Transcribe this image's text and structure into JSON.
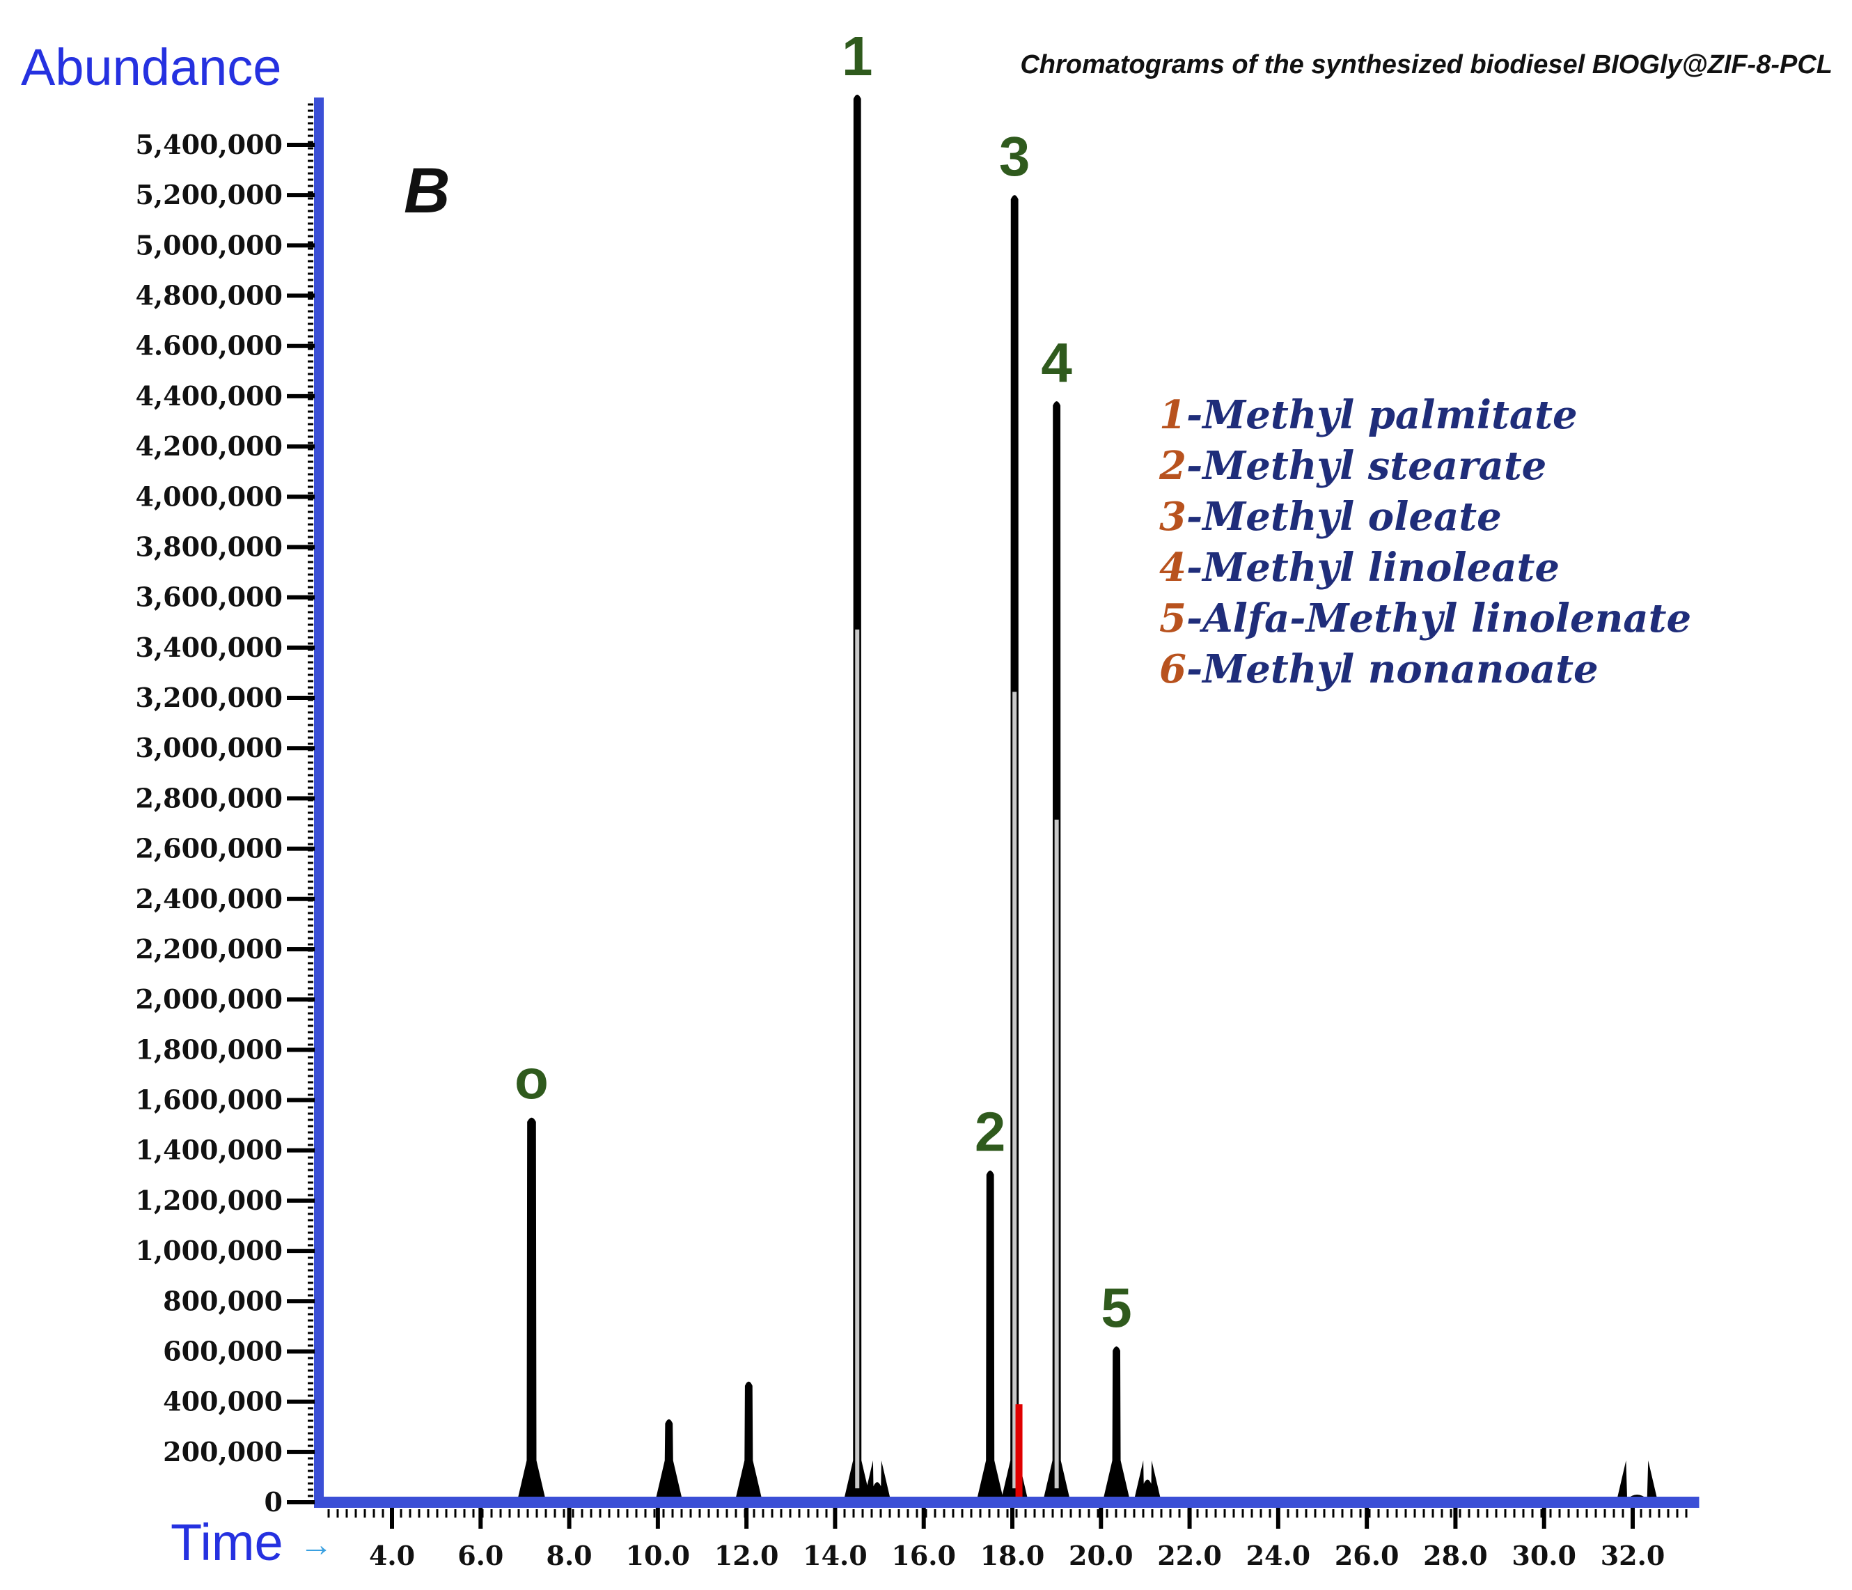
{
  "chart_data": {
    "type": "line",
    "panel_label": "B",
    "title": "Chromatograms of the synthesized biodiesel BIOGly@ZIF-8-PCL",
    "ylabel": "Abundance",
    "xlabel": "Time",
    "xlabel_arrow": "→",
    "xlim": [
      2.0,
      33.5
    ],
    "ylim": [
      0,
      5600000
    ],
    "y_ticks": [
      {
        "value": 0,
        "label": "0"
      },
      {
        "value": 200000,
        "label": "200,000"
      },
      {
        "value": 400000,
        "label": "400,000"
      },
      {
        "value": 600000,
        "label": "600,000"
      },
      {
        "value": 800000,
        "label": "800,000"
      },
      {
        "value": 1000000,
        "label": "1,000,000"
      },
      {
        "value": 1200000,
        "label": "1,200,000"
      },
      {
        "value": 1400000,
        "label": "1,400,000"
      },
      {
        "value": 1600000,
        "label": "1,600,000"
      },
      {
        "value": 1800000,
        "label": "1,800,000"
      },
      {
        "value": 2000000,
        "label": "2,000,000"
      },
      {
        "value": 2200000,
        "label": "2,200,000"
      },
      {
        "value": 2400000,
        "label": "2,400,000"
      },
      {
        "value": 2600000,
        "label": "2,600,000"
      },
      {
        "value": 2800000,
        "label": "2,800,000"
      },
      {
        "value": 3000000,
        "label": "3,000,000"
      },
      {
        "value": 3200000,
        "label": "3,200,000"
      },
      {
        "value": 3400000,
        "label": "3,400,000"
      },
      {
        "value": 3600000,
        "label": "3,600,000"
      },
      {
        "value": 3800000,
        "label": "3,800,000"
      },
      {
        "value": 4000000,
        "label": "4,000,000"
      },
      {
        "value": 4200000,
        "label": "4,200,000"
      },
      {
        "value": 4400000,
        "label": "4,400,000"
      },
      {
        "value": 4600000,
        "label": "4.600,000"
      },
      {
        "value": 4800000,
        "label": "4,800,000"
      },
      {
        "value": 5000000,
        "label": "5,000,000"
      },
      {
        "value": 5200000,
        "label": "5,200,000"
      },
      {
        "value": 5400000,
        "label": "5,400,000"
      }
    ],
    "x_ticks": [
      {
        "value": 4.0,
        "label": "4.0"
      },
      {
        "value": 6.0,
        "label": "6.0"
      },
      {
        "value": 8.0,
        "label": "8.0"
      },
      {
        "value": 10.0,
        "label": "10.0"
      },
      {
        "value": 12.0,
        "label": "12.0"
      },
      {
        "value": 14.0,
        "label": "14.0"
      },
      {
        "value": 16.0,
        "label": "16.0"
      },
      {
        "value": 18.0,
        "label": "18.0"
      },
      {
        "value": 20.0,
        "label": "20.0"
      },
      {
        "value": 22.0,
        "label": "22.0"
      },
      {
        "value": 24.0,
        "label": "24.0"
      },
      {
        "value": 26.0,
        "label": "26.0"
      },
      {
        "value": 28.0,
        "label": "28.0"
      },
      {
        "value": 30.0,
        "label": "30.0"
      },
      {
        "value": 32.0,
        "label": "32.0"
      }
    ],
    "peaks": [
      {
        "label": "o",
        "time": 7.15,
        "abundance": 1530000,
        "width": 0.22
      },
      {
        "label": "",
        "time": 10.25,
        "abundance": 330000,
        "width": 0.12
      },
      {
        "label": "",
        "time": 12.05,
        "abundance": 480000,
        "width": 0.1
      },
      {
        "label": "1",
        "time": 14.5,
        "abundance": 5600000,
        "width": 0.18
      },
      {
        "label": "",
        "time": 14.95,
        "abundance": 80000,
        "width": 0.08
      },
      {
        "label": "2",
        "time": 17.5,
        "abundance": 1320000,
        "width": 0.12
      },
      {
        "label": "3",
        "time": 18.05,
        "abundance": 5200000,
        "width": 0.12
      },
      {
        "label": "4",
        "time": 19.0,
        "abundance": 4380000,
        "width": 0.12
      },
      {
        "label": "5",
        "time": 20.35,
        "abundance": 620000,
        "width": 0.1
      },
      {
        "label": "",
        "time": 21.05,
        "abundance": 90000,
        "width": 0.08
      },
      {
        "label": "",
        "time": 32.1,
        "abundance": 30000,
        "width": 0.5
      }
    ],
    "highlight": {
      "time": 18.15,
      "abundance": 390000,
      "color": "#e00000"
    },
    "legend": [
      {
        "number": "1",
        "name": "-Methyl palmitate"
      },
      {
        "number": "2",
        "name": "-Methyl stearate"
      },
      {
        "number": "3",
        "name": "-Methyl oleate"
      },
      {
        "number": "4",
        "name": "-Methyl linoleate"
      },
      {
        "number": "5",
        "name": "-Alfa-Methyl linolenate"
      },
      {
        "number": "6",
        "name": "-Methyl nonanoate"
      }
    ],
    "colors": {
      "axis": "#3b4fd6",
      "trace": "#000000",
      "peak_label": "#2f5a1d",
      "legend_number": "#b8521e",
      "legend_name": "#1f2d7a",
      "axis_title": "#2531e0",
      "time_arrow": "#3aa0e0"
    }
  }
}
